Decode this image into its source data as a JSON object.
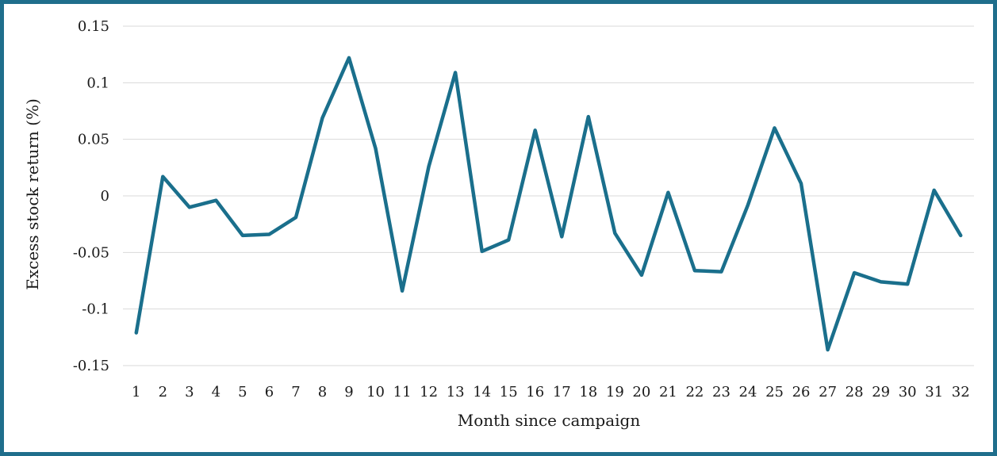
{
  "chart_data": {
    "type": "line",
    "xlabel": "Month since campaign",
    "ylabel": "Excess stock return (%)",
    "x": [
      1,
      2,
      3,
      4,
      5,
      6,
      7,
      8,
      9,
      10,
      11,
      12,
      13,
      14,
      15,
      16,
      17,
      18,
      19,
      20,
      21,
      22,
      23,
      24,
      25,
      26,
      27,
      28,
      29,
      30,
      31,
      32
    ],
    "series": [
      {
        "values": [
          -0.121,
          0.017,
          -0.01,
          -0.004,
          -0.035,
          -0.034,
          -0.019,
          0.069,
          0.122,
          0.042,
          -0.084,
          0.026,
          0.109,
          -0.049,
          -0.039,
          0.058,
          -0.036,
          0.07,
          -0.033,
          -0.07,
          0.003,
          -0.066,
          -0.067,
          -0.008,
          0.06,
          0.011,
          -0.136,
          -0.068,
          -0.076,
          -0.078,
          0.005,
          -0.035
        ]
      }
    ],
    "ylim": [
      -0.15,
      0.15
    ],
    "yticks": [
      "0.15",
      "0.1",
      "0.05",
      "0",
      "-0.05",
      "-0.1",
      "-0.15"
    ],
    "ytick_values": [
      0.15,
      0.1,
      0.05,
      0,
      -0.05,
      -0.1,
      -0.15
    ],
    "grid": true,
    "legend": "none",
    "line_color": "#1a6f8c",
    "grid_color": "#d9d9d9",
    "frame_color": "#1f6e8c"
  }
}
